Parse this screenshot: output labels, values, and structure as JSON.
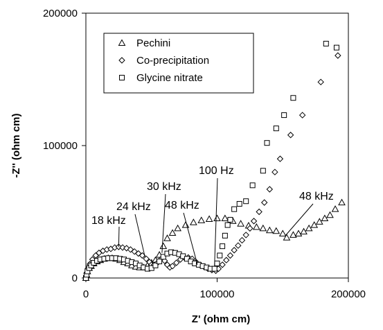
{
  "chart_data": {
    "type": "scatter",
    "title": "",
    "xlabel": "Z' (ohm cm)",
    "ylabel": "-Z'' (ohm cm)",
    "xlim": [
      0,
      200000
    ],
    "ylim": [
      0,
      200000
    ],
    "x_ticks": [
      "0",
      "100000",
      "200000"
    ],
    "y_ticks": [
      "0",
      "100000",
      "200000"
    ],
    "grid": false,
    "legend_position": "top-left",
    "series": [
      {
        "name": "Pechini",
        "marker": "triangle",
        "points": [
          [
            0,
            0
          ],
          [
            500,
            2500
          ],
          [
            1200,
            5000
          ],
          [
            2500,
            7500
          ],
          [
            4000,
            9000
          ],
          [
            6000,
            11000
          ],
          [
            8500,
            12500
          ],
          [
            11000,
            13500
          ],
          [
            14000,
            14500
          ],
          [
            17000,
            15000
          ],
          [
            20000,
            15000
          ],
          [
            23000,
            14500
          ],
          [
            26000,
            13500
          ],
          [
            29000,
            12000
          ],
          [
            32000,
            11000
          ],
          [
            35000,
            9500
          ],
          [
            38000,
            8500
          ],
          [
            41000,
            8000
          ],
          [
            44000,
            8000
          ],
          [
            47000,
            9500
          ],
          [
            50000,
            11500
          ],
          [
            53000,
            13500
          ],
          [
            56000,
            17500
          ],
          [
            59000,
            24000
          ],
          [
            62000,
            30000
          ],
          [
            66000,
            34000
          ],
          [
            70000,
            37500
          ],
          [
            76000,
            40000
          ],
          [
            82000,
            42000
          ],
          [
            88000,
            43500
          ],
          [
            94000,
            44500
          ],
          [
            100000,
            45000
          ],
          [
            106000,
            45000
          ],
          [
            112000,
            43000
          ],
          [
            118000,
            41000
          ],
          [
            124000,
            39500
          ],
          [
            130000,
            38500
          ],
          [
            135000,
            37500
          ],
          [
            140000,
            36000
          ],
          [
            145000,
            35500
          ],
          [
            150000,
            33500
          ],
          [
            153000,
            30500
          ],
          [
            158000,
            32500
          ],
          [
            162000,
            33500
          ],
          [
            166000,
            35000
          ],
          [
            170000,
            37500
          ],
          [
            174000,
            40000
          ],
          [
            178000,
            42500
          ],
          [
            182000,
            45000
          ],
          [
            186000,
            47500
          ],
          [
            190000,
            52000
          ],
          [
            195000,
            57000
          ]
        ]
      },
      {
        "name": "Co-precipitation",
        "marker": "diamond",
        "points": [
          [
            0,
            0
          ],
          [
            600,
            3500
          ],
          [
            1500,
            7000
          ],
          [
            3000,
            10500
          ],
          [
            5000,
            14000
          ],
          [
            7500,
            17000
          ],
          [
            10000,
            19000
          ],
          [
            13000,
            20500
          ],
          [
            16000,
            21500
          ],
          [
            19000,
            22000
          ],
          [
            22000,
            23000
          ],
          [
            25000,
            23500
          ],
          [
            28000,
            23000
          ],
          [
            31000,
            22500
          ],
          [
            34000,
            21500
          ],
          [
            37000,
            20000
          ],
          [
            40000,
            18500
          ],
          [
            43000,
            17000
          ],
          [
            46000,
            14500
          ],
          [
            48500,
            12000
          ],
          [
            50000,
            10000
          ],
          [
            52000,
            10000
          ],
          [
            54000,
            11000
          ],
          [
            57000,
            14000
          ],
          [
            60000,
            13000
          ],
          [
            62000,
            10000
          ],
          [
            64000,
            8000
          ],
          [
            66000,
            9000
          ],
          [
            69000,
            11500
          ],
          [
            72000,
            14000
          ],
          [
            75000,
            15500
          ],
          [
            78000,
            15500
          ],
          [
            81000,
            14500
          ],
          [
            84000,
            12000
          ],
          [
            87000,
            10000
          ],
          [
            90000,
            8500
          ],
          [
            93000,
            7000
          ],
          [
            96000,
            6000
          ],
          [
            99000,
            5500
          ],
          [
            101000,
            7000
          ],
          [
            104000,
            10000
          ],
          [
            107000,
            13500
          ],
          [
            110000,
            17000
          ],
          [
            113000,
            21000
          ],
          [
            116000,
            24500
          ],
          [
            119000,
            28500
          ],
          [
            122000,
            32500
          ],
          [
            125000,
            37500
          ],
          [
            128000,
            43000
          ],
          [
            132000,
            50000
          ],
          [
            136000,
            57000
          ],
          [
            140000,
            67000
          ],
          [
            144000,
            80000
          ],
          [
            148000,
            90000
          ],
          [
            156000,
            108000
          ],
          [
            165000,
            123000
          ],
          [
            179000,
            148000
          ],
          [
            192000,
            168000
          ]
        ]
      },
      {
        "name": "Glycine nitrate",
        "marker": "square",
        "points": [
          [
            0,
            0
          ],
          [
            500,
            2500
          ],
          [
            1200,
            5000
          ],
          [
            2500,
            7500
          ],
          [
            4000,
            9500
          ],
          [
            6000,
            11500
          ],
          [
            8500,
            13000
          ],
          [
            11000,
            14000
          ],
          [
            14000,
            14500
          ],
          [
            17000,
            15000
          ],
          [
            20000,
            15000
          ],
          [
            23000,
            15000
          ],
          [
            26000,
            14500
          ],
          [
            29000,
            14000
          ],
          [
            32000,
            13000
          ],
          [
            35000,
            12000
          ],
          [
            38000,
            11000
          ],
          [
            41000,
            9500
          ],
          [
            44000,
            8000
          ],
          [
            47000,
            7000
          ],
          [
            50000,
            7500
          ],
          [
            53000,
            9500
          ],
          [
            56000,
            12500
          ],
          [
            59000,
            16000
          ],
          [
            62000,
            18500
          ],
          [
            65000,
            19500
          ],
          [
            68000,
            19000
          ],
          [
            71000,
            18000
          ],
          [
            74000,
            16500
          ],
          [
            77000,
            14500
          ],
          [
            80000,
            12500
          ],
          [
            83000,
            11000
          ],
          [
            86000,
            10000
          ],
          [
            89000,
            9000
          ],
          [
            92000,
            8000
          ],
          [
            95000,
            7000
          ],
          [
            98000,
            7000
          ],
          [
            100000,
            11000
          ],
          [
            102000,
            17000
          ],
          [
            104000,
            24000
          ],
          [
            106000,
            32000
          ],
          [
            108000,
            40000
          ],
          [
            110000,
            44000
          ],
          [
            113000,
            52000
          ],
          [
            117000,
            56000
          ],
          [
            122000,
            58000
          ],
          [
            127000,
            70000
          ],
          [
            135000,
            81000
          ],
          [
            138000,
            102000
          ],
          [
            145000,
            113000
          ],
          [
            151000,
            123000
          ],
          [
            158000,
            136000
          ],
          [
            183000,
            177000
          ],
          [
            191000,
            174000
          ]
        ]
      }
    ],
    "annotations": [
      {
        "label": "18 kHz",
        "point": [
          25000,
          23500
        ]
      },
      {
        "label": "24 kHz",
        "point": [
          45000,
          16000
        ]
      },
      {
        "label": "30 kHz",
        "point": [
          58000,
          19000
        ]
      },
      {
        "label": "48 kHz",
        "point": [
          85000,
          10000
        ]
      },
      {
        "label": "100 Hz",
        "point": [
          98000,
          9000
        ]
      },
      {
        "label": "48 kHz",
        "point": [
          152000,
          32000
        ]
      }
    ]
  }
}
